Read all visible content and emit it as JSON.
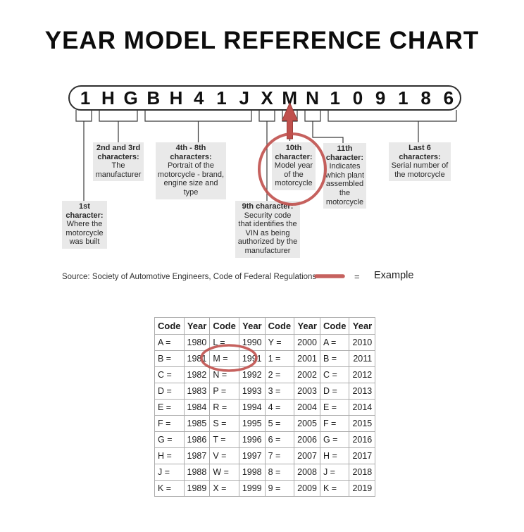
{
  "title": "YEAR MODEL REFERENCE CHART",
  "vin": {
    "characters": [
      "1",
      "H",
      "G",
      "B",
      "H",
      "4",
      "1",
      "J",
      "X",
      "M",
      "N",
      "1",
      "0",
      "9",
      "1",
      "8",
      "6"
    ]
  },
  "callouts": {
    "first": {
      "heading": "1st\ncharacter:",
      "body": "Where the\nmotorcycle\nwas built"
    },
    "second_third": {
      "heading": "2nd and 3rd\ncharacters:",
      "body": "The\nmanufacturer"
    },
    "fourth_eighth": {
      "heading": "4th - 8th\ncharacters:",
      "body": "Portrait of the\nmotorcycle - brand,\nengine size and type"
    },
    "ninth": {
      "heading": "9th character:",
      "body": "Security code\nthat identifies the\nVIN as being\nauthorized by the\nmanufacturer"
    },
    "tenth": {
      "heading": "10th\ncharacter:",
      "body": "Model year\nof the\nmotorcycle"
    },
    "eleventh": {
      "heading": "11th\ncharacter:",
      "body": "Indicates\nwhich plant\nassembled\nthe\nmotorcycle"
    },
    "last_six": {
      "heading": "Last 6\ncharacters:",
      "body": "Serial number of\nthe motorcycle"
    }
  },
  "source_line": "Source:  Society of Automotive Engineers, Code of Federal Regulations",
  "legend": {
    "equals_sign": "=",
    "label": "Example"
  },
  "annotations": {
    "arrow_points_to": "M",
    "circled_flow_item": "10th character: Model year of the motorcycle",
    "circled_table_cell": "M = 1991"
  },
  "colors": {
    "example_red": "#c0504d",
    "callout_bg": "#e9e9e9"
  },
  "table": {
    "headers": [
      "Code",
      "Year",
      "Code",
      "Year",
      "Code",
      "Year",
      "Code",
      "Year"
    ],
    "rows": [
      [
        "A =",
        "1980",
        "L =",
        "1990",
        "Y =",
        "2000",
        "A =",
        "2010"
      ],
      [
        "B =",
        "1981",
        "M =",
        "1991",
        "1 =",
        "2001",
        "B =",
        "2011"
      ],
      [
        "C =",
        "1982",
        "N =",
        "1992",
        "2 =",
        "2002",
        "C =",
        "2012"
      ],
      [
        "D =",
        "1983",
        "P =",
        "1993",
        "3 =",
        "2003",
        "D =",
        "2013"
      ],
      [
        "E =",
        "1984",
        "R =",
        "1994",
        "4 =",
        "2004",
        "E =",
        "2014"
      ],
      [
        "F =",
        "1985",
        "S =",
        "1995",
        "5 =",
        "2005",
        "F =",
        "2015"
      ],
      [
        "G =",
        "1986",
        "T =",
        "1996",
        "6 =",
        "2006",
        "G =",
        "2016"
      ],
      [
        "H =",
        "1987",
        "V =",
        "1997",
        "7 =",
        "2007",
        "H =",
        "2017"
      ],
      [
        "J =",
        "1988",
        "W =",
        "1998",
        "8 =",
        "2008",
        "J =",
        "2018"
      ],
      [
        "K =",
        "1989",
        "X =",
        "1999",
        "9 =",
        "2009",
        "K =",
        "2019"
      ]
    ]
  }
}
